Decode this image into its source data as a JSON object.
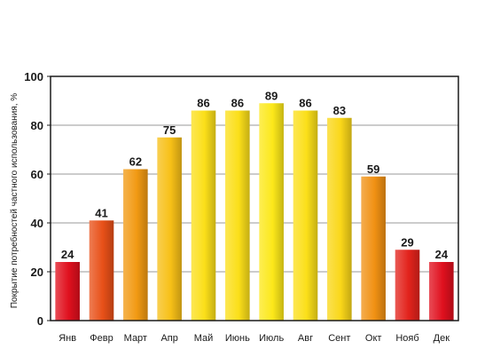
{
  "chart_data": {
    "type": "bar",
    "title": "",
    "xlabel": "",
    "ylabel": "Покрытие потребностей частного использования, %",
    "categories": [
      "Янв",
      "Февр",
      "Март",
      "Апр",
      "Май",
      "Июнь",
      "Июль",
      "Авг",
      "Сент",
      "Окт",
      "Нояб",
      "Дек"
    ],
    "values": [
      24,
      41,
      62,
      75,
      86,
      86,
      89,
      86,
      83,
      59,
      29,
      24
    ],
    "data_labels": [
      "24",
      "41",
      "62",
      "75",
      "86",
      "86",
      "89",
      "86",
      "83",
      "59",
      "29",
      "24"
    ],
    "ylim": [
      0,
      100
    ],
    "yticks": [
      "0",
      "20",
      "40",
      "60",
      "80",
      "100"
    ],
    "grid": "horizontal",
    "legend": "none",
    "colors": {
      "low": "#e0101e",
      "mid": "#f08a12",
      "high": "#fce81a",
      "plot_background": "#ffffff",
      "gridline": "#9a9a9a",
      "frame": "#1a1a1a"
    }
  }
}
